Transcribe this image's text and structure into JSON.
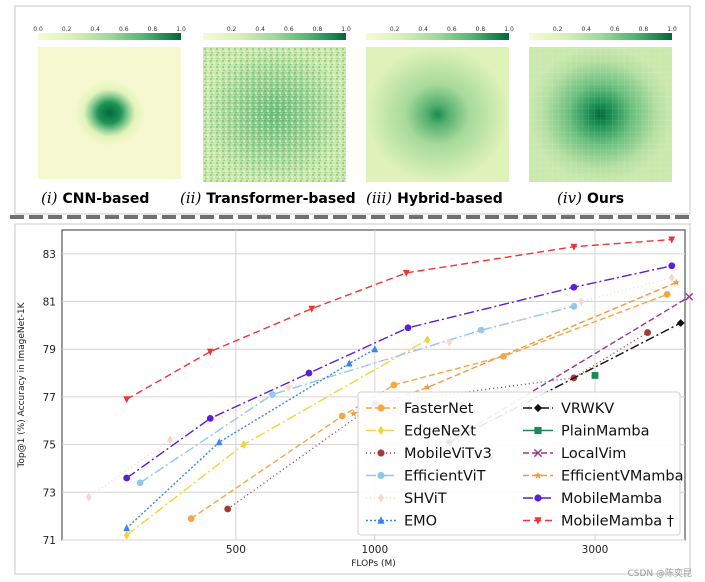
{
  "heatmaps": {
    "colorbar_ticks": [
      "0.0",
      "0.2",
      "0.4",
      "0.6",
      "0.8",
      "1.0"
    ],
    "panels": [
      {
        "numeral": "(i)",
        "label": "CNN-based",
        "colors": {
          "low": "#f6f9cf",
          "high": "#006b3a"
        }
      },
      {
        "numeral": "(ii)",
        "label": "Transformer-based",
        "colors": {
          "low": "#f6f9cf",
          "high": "#006b3a"
        }
      },
      {
        "numeral": "(iii)",
        "label": "Hybrid-based",
        "colors": {
          "low": "#f6f9cf",
          "high": "#006b3a"
        }
      },
      {
        "numeral": "(iv)",
        "label": "Ours",
        "colors": {
          "low": "#f6f9cf",
          "high": "#006b3a"
        }
      }
    ]
  },
  "chart_data": {
    "type": "line",
    "xlabel": "FLOPs (M)",
    "ylabel": "Top@1 (%) Accuracy in ImageNet-1K",
    "x_scale": "log",
    "xlim": [
      210,
      4700
    ],
    "ylim": [
      71,
      84
    ],
    "x_ticks": [
      500,
      1000,
      3000
    ],
    "y_ticks": [
      71,
      73,
      75,
      77,
      79,
      81,
      83
    ],
    "grid": true,
    "legend_position": "bottom-right",
    "series": [
      {
        "name": "FasterNet",
        "color": "#f5a742",
        "marker": "o",
        "dash": "6,3",
        "points": [
          [
            400,
            71.9
          ],
          [
            850,
            76.2
          ],
          [
            1100,
            77.5
          ],
          [
            1900,
            78.7
          ],
          [
            4300,
            81.3
          ]
        ]
      },
      {
        "name": "EdgeNeXt",
        "color": "#f2d535",
        "marker": "d",
        "dash": "10,3,2,3",
        "points": [
          [
            290,
            71.2
          ],
          [
            520,
            75.0
          ],
          [
            1300,
            79.4
          ]
        ]
      },
      {
        "name": "MobileViTv3",
        "color": "#a33a3a",
        "marker": "h",
        "dash": "1,3",
        "points": [
          [
            480,
            72.3
          ],
          [
            1000,
            76.7
          ],
          [
            2700,
            77.8
          ],
          [
            3900,
            79.7
          ]
        ]
      },
      {
        "name": "EfficientViT",
        "color": "#8ec8ec",
        "marker": "o",
        "dash": "10,3,2,3",
        "points": [
          [
            310,
            73.4
          ],
          [
            600,
            77.1
          ],
          [
            1700,
            79.8
          ],
          [
            2700,
            80.8
          ]
        ]
      },
      {
        "name": "SHViT",
        "color": "#f7d8c8",
        "marker": "d",
        "dash": "1,3",
        "points": [
          [
            240,
            72.8
          ],
          [
            360,
            75.2
          ],
          [
            650,
            77.4
          ],
          [
            1450,
            79.3
          ],
          [
            2800,
            81.0
          ],
          [
            4400,
            82.0
          ]
        ]
      },
      {
        "name": "EMO",
        "color": "#3a86e6",
        "marker": "^",
        "dash": "2,2",
        "points": [
          [
            290,
            71.5
          ],
          [
            460,
            75.1
          ],
          [
            880,
            78.4
          ],
          [
            1000,
            79.0
          ]
        ]
      },
      {
        "name": "VRWKV",
        "color": "#111111",
        "marker": "D",
        "dash": "9,3,2,3",
        "points": [
          [
            1450,
            75.1
          ],
          [
            4600,
            80.1
          ]
        ]
      },
      {
        "name": "PlainMamba",
        "color": "#1b8a5a",
        "marker": "s",
        "dash": "",
        "points": [
          [
            3000,
            77.9
          ]
        ]
      },
      {
        "name": "LocalVim",
        "color": "#a0348f",
        "marker": "x",
        "dash": "6,3",
        "points": [
          [
            1500,
            75.3
          ],
          [
            4800,
            81.2
          ]
        ]
      },
      {
        "name": "EfficientVMamba",
        "color": "#f09a3e",
        "marker": "*",
        "dash": "6,3",
        "points": [
          [
            900,
            76.3
          ],
          [
            1300,
            77.4
          ],
          [
            4500,
            81.8
          ]
        ]
      },
      {
        "name": "MobileMamba",
        "color": "#5a1fd6",
        "marker": "o",
        "dash": "10,3,2,3",
        "points": [
          [
            290,
            73.6
          ],
          [
            440,
            76.1
          ],
          [
            720,
            78.0
          ],
          [
            1180,
            79.9
          ],
          [
            2700,
            81.6
          ],
          [
            4400,
            82.5
          ]
        ]
      },
      {
        "name": "MobileMamba †",
        "color": "#ee3434",
        "marker": "v",
        "dash": "7,4",
        "points": [
          [
            290,
            76.9
          ],
          [
            440,
            78.9
          ],
          [
            730,
            80.7
          ],
          [
            1170,
            82.2
          ],
          [
            2700,
            83.3
          ],
          [
            4400,
            83.6
          ]
        ]
      }
    ]
  },
  "watermark": "CSDN @陈奕昆"
}
